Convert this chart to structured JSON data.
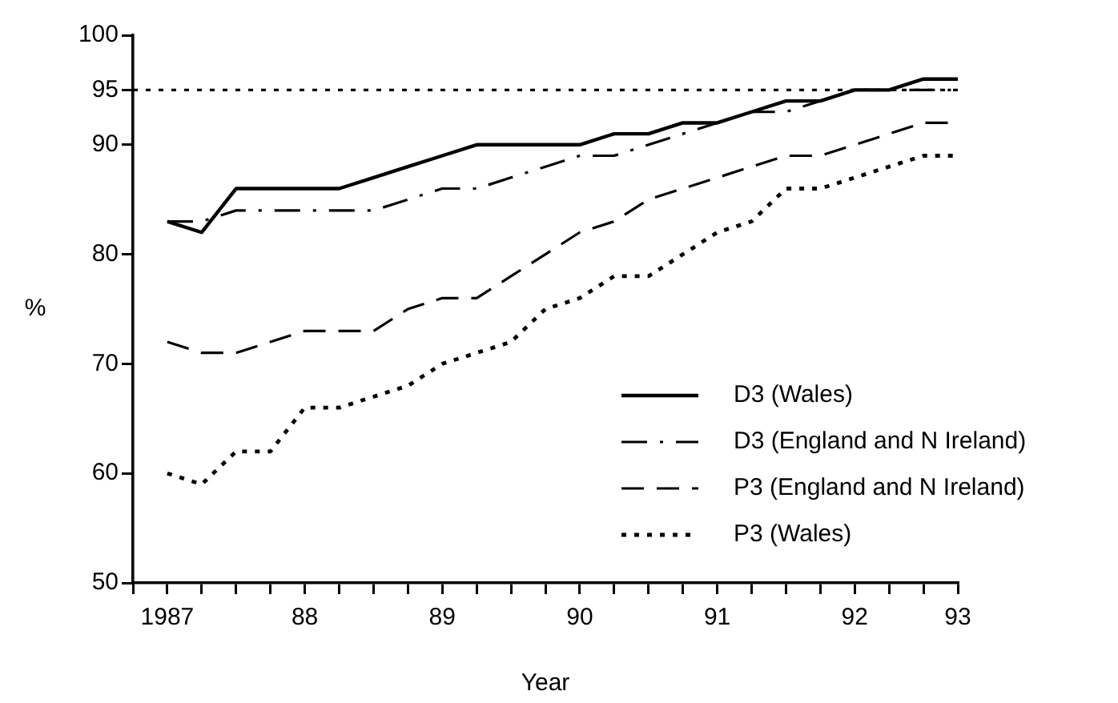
{
  "chart_data": {
    "type": "line",
    "xlabel": "Year",
    "ylabel": "%",
    "categories": [
      null,
      "1987",
      null,
      null,
      null,
      "88",
      null,
      null,
      null,
      "89",
      null,
      null,
      null,
      "90",
      null,
      null,
      null,
      "91",
      null,
      null,
      null,
      "92",
      null,
      null,
      "93"
    ],
    "series": [
      {
        "name": "D3 (Wales)",
        "color": "#000000",
        "line_style": "solid",
        "values": [
          null,
          83,
          82,
          86,
          86,
          86,
          86,
          87,
          88,
          89,
          90,
          90,
          90,
          90,
          91,
          91,
          92,
          92,
          93,
          94,
          94,
          95,
          95,
          96,
          96
        ]
      },
      {
        "name": "D3 (England and N Ireland)",
        "color": "#000000",
        "line_style": "dashdot",
        "values": [
          null,
          83,
          83,
          84,
          84,
          84,
          84,
          84,
          85,
          86,
          86,
          87,
          88,
          89,
          89,
          90,
          91,
          92,
          93,
          93,
          94,
          95,
          95,
          95,
          95
        ]
      },
      {
        "name": "P3 (England and N Ireland)",
        "color": "#000000",
        "line_style": "dashed",
        "values": [
          null,
          72,
          71,
          71,
          72,
          73,
          73,
          73,
          75,
          76,
          76,
          78,
          80,
          82,
          83,
          85,
          86,
          87,
          88,
          89,
          89,
          90,
          91,
          92,
          92
        ]
      },
      {
        "name": "P3 (Wales)",
        "color": "#000000",
        "line_style": "dotted",
        "values": [
          null,
          60,
          59,
          62,
          62,
          66,
          66,
          67,
          68,
          70,
          71,
          72,
          75,
          76,
          78,
          78,
          80,
          82,
          83,
          86,
          86,
          87,
          88,
          89,
          89
        ]
      }
    ],
    "ylim": [
      50,
      100
    ],
    "yticks": [
      50,
      60,
      70,
      80,
      90,
      95,
      100
    ],
    "ref_lines": [
      {
        "axis": "y",
        "value": 95,
        "line_style": "dotted"
      }
    ],
    "grid": false,
    "legend": "bottom right",
    "marker": "none"
  }
}
